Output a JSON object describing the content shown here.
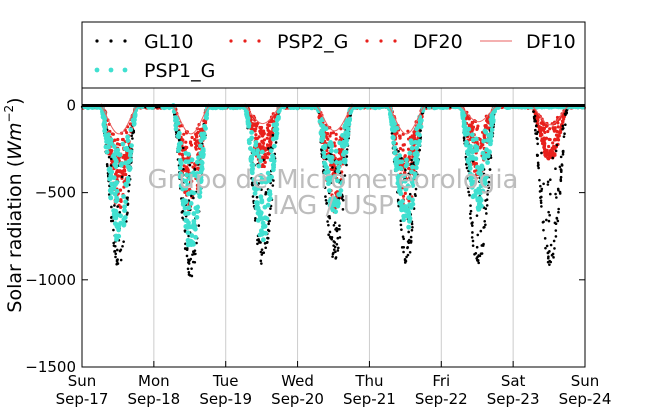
{
  "chart_data": {
    "type": "scatter",
    "title": "",
    "xlabel": "",
    "ylabel": "Solar radiation (Wm^-2)",
    "ylabel_main": "Solar radiation (",
    "ylabel_unit": "Wm",
    "ylabel_exp": "−2",
    "ylabel_close": ")",
    "ylim": [
      -1500,
      100
    ],
    "y_ticks": [
      0,
      -500,
      -1000,
      -1500
    ],
    "y_tick_labels": [
      "0",
      "−500",
      "−1000",
      "−1500"
    ],
    "x_range_days": [
      0,
      7
    ],
    "x_ticks": [
      {
        "day": 0,
        "line1": "Sun",
        "line2": "Sep-17"
      },
      {
        "day": 1,
        "line1": "Mon",
        "line2": "Sep-18"
      },
      {
        "day": 2,
        "line1": "Tue",
        "line2": "Sep-19"
      },
      {
        "day": 3,
        "line1": "Wed",
        "line2": "Sep-20"
      },
      {
        "day": 4,
        "line1": "Thu",
        "line2": "Sep-21"
      },
      {
        "day": 5,
        "line1": "Fri",
        "line2": "Sep-22"
      },
      {
        "day": 6,
        "line1": "Sat",
        "line2": "Sep-23"
      },
      {
        "day": 7,
        "line1": "Sun",
        "line2": "Sep-24"
      }
    ],
    "grid": "vertical",
    "legend_placement": "top",
    "legend": [
      {
        "name": "GL10",
        "style": "dots",
        "color": "#000000"
      },
      {
        "name": "PSP2_G",
        "style": "dots",
        "color": "#e8201c"
      },
      {
        "name": "DF20",
        "style": "dots",
        "color": "#e8201c"
      },
      {
        "name": "DF10",
        "style": "line",
        "color": "#e86060"
      },
      {
        "name": "PSP1_G",
        "style": "dots",
        "color": "#40e0d0"
      }
    ],
    "daily_peaks": {
      "days": [
        "Sep-17",
        "Sep-18",
        "Sep-19",
        "Sep-20",
        "Sep-21",
        "Sep-22",
        "Sep-23"
      ],
      "GL10": [
        -940,
        -990,
        -930,
        -900,
        -910,
        -930,
        -940
      ],
      "PSP1_G": [
        -800,
        -860,
        -780,
        -640,
        -720,
        -610,
        null
      ],
      "PSP2_G": [
        -600,
        -620,
        -360,
        -620,
        -650,
        -430,
        -330
      ],
      "DF20": [
        -450,
        -450,
        -280,
        -400,
        -450,
        -250,
        -300
      ]
    },
    "zero_line": 0
  },
  "watermark": {
    "line1": "Grupo de Micrometeorologia",
    "line2": "IAG / USP"
  }
}
